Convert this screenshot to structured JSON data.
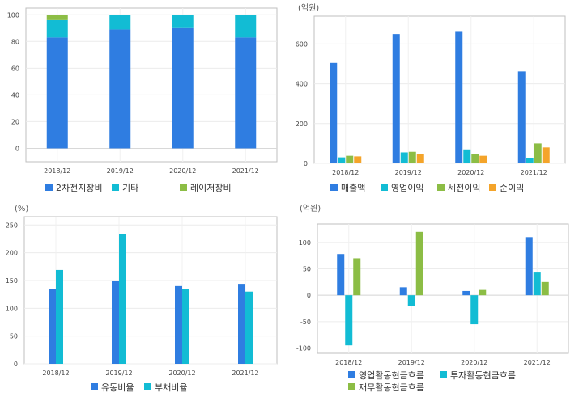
{
  "chart_data": [
    {
      "type": "bar",
      "stacked": true,
      "unit": "",
      "categories": [
        "2018/12",
        "2019/12",
        "2020/12",
        "2021/12"
      ],
      "series": [
        {
          "name": "2차전지장비",
          "values": [
            83,
            89,
            90,
            83
          ]
        },
        {
          "name": "기타",
          "values": [
            13,
            11,
            10,
            17
          ]
        },
        {
          "name": "레이저장비",
          "values": [
            4,
            0,
            0,
            0
          ]
        }
      ],
      "ylim": [
        -10,
        105
      ],
      "yticks": [
        0,
        20,
        40,
        60,
        80,
        100
      ],
      "grid": true,
      "legend": "bottom"
    },
    {
      "type": "bar",
      "unit": "(억원)",
      "categories": [
        "2018/12",
        "2019/12",
        "2020/12",
        "2021/12"
      ],
      "series": [
        {
          "name": "매출액",
          "values": [
            505,
            650,
            665,
            462
          ]
        },
        {
          "name": "영업이익",
          "values": [
            30,
            55,
            70,
            25
          ]
        },
        {
          "name": "세전이익",
          "values": [
            38,
            58,
            48,
            100
          ]
        },
        {
          "name": "순이익",
          "values": [
            35,
            45,
            38,
            80
          ]
        }
      ],
      "ylim": [
        0,
        740
      ],
      "yticks": [
        0,
        200,
        400,
        600
      ],
      "grid": true,
      "legend": "bottom"
    },
    {
      "type": "bar",
      "unit": "(%)",
      "categories": [
        "2018/12",
        "2019/12",
        "2020/12",
        "2021/12"
      ],
      "series": [
        {
          "name": "유동비율",
          "values": [
            135,
            150,
            140,
            144
          ]
        },
        {
          "name": "부채비율",
          "values": [
            169,
            233,
            135,
            130
          ]
        }
      ],
      "ylim": [
        0,
        265
      ],
      "yticks": [
        0,
        50,
        100,
        150,
        200,
        250
      ],
      "grid": true,
      "legend": "bottom"
    },
    {
      "type": "bar",
      "unit": "(억원)",
      "categories": [
        "2018/12",
        "2019/12",
        "2020/12",
        "2021/12"
      ],
      "series": [
        {
          "name": "영업활동현금흐름",
          "values": [
            78,
            15,
            8,
            110
          ]
        },
        {
          "name": "투자활동현금흐름",
          "values": [
            -95,
            -20,
            -55,
            43
          ]
        },
        {
          "name": "재무활동현금흐름",
          "values": [
            70,
            120,
            10,
            25
          ]
        }
      ],
      "ylim": [
        -110,
        135
      ],
      "yticks": [
        -100,
        -50,
        0,
        50,
        100
      ],
      "grid": true,
      "legend": "bottom"
    }
  ],
  "colors": [
    "#2f7de1",
    "#12bcd4",
    "#8cbd45",
    "#f4a42a"
  ]
}
